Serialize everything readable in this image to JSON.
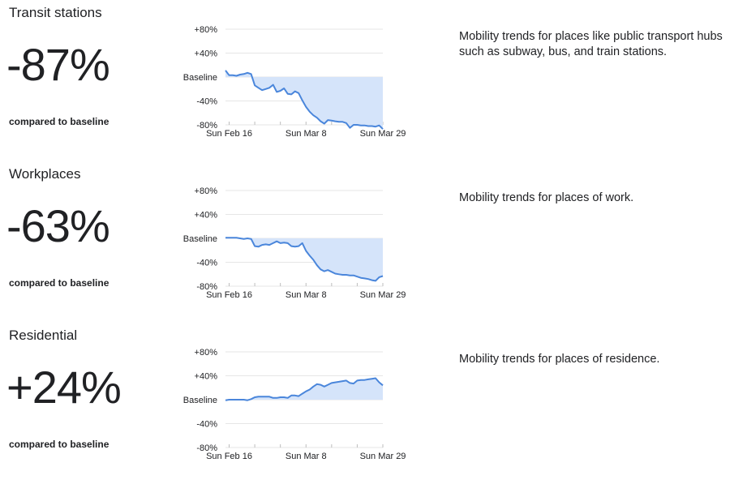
{
  "sections": [
    {
      "title": "Transit stations",
      "value": "-87%",
      "caption": "compared to baseline",
      "description": "Mobility trends for places like public transport hubs such as subway, bus, and train stations."
    },
    {
      "title": "Workplaces",
      "value": "-63%",
      "caption": "compared to baseline",
      "description": "Mobility trends for places of work."
    },
    {
      "title": "Residential",
      "value": "+24%",
      "caption": "compared to baseline",
      "description": "Mobility trends for places of residence."
    }
  ],
  "colors": {
    "line": "#4a86db",
    "fill": "#d5e4fa",
    "grid": "#e6e6e6"
  },
  "chart_data": [
    {
      "type": "area",
      "x_ticks": [
        "Sun Feb 16",
        "Sun Mar 8",
        "Sun Mar 29"
      ],
      "y_ticks": [
        "+80%",
        "+40%",
        "Baseline",
        "-40%",
        "-80%"
      ],
      "ylim": [
        -80,
        80
      ],
      "xlim": [
        "2020-02-15",
        "2020-03-29"
      ],
      "x": [
        "2020-02-15",
        "2020-02-16",
        "2020-02-17",
        "2020-02-18",
        "2020-02-19",
        "2020-02-20",
        "2020-02-21",
        "2020-02-22",
        "2020-02-23",
        "2020-02-24",
        "2020-02-25",
        "2020-02-26",
        "2020-02-27",
        "2020-02-28",
        "2020-02-29",
        "2020-03-01",
        "2020-03-02",
        "2020-03-03",
        "2020-03-04",
        "2020-03-05",
        "2020-03-06",
        "2020-03-07",
        "2020-03-08",
        "2020-03-09",
        "2020-03-10",
        "2020-03-11",
        "2020-03-12",
        "2020-03-13",
        "2020-03-14",
        "2020-03-15",
        "2020-03-16",
        "2020-03-17",
        "2020-03-18",
        "2020-03-19",
        "2020-03-20",
        "2020-03-21",
        "2020-03-22",
        "2020-03-23",
        "2020-03-24",
        "2020-03-25",
        "2020-03-26",
        "2020-03-27",
        "2020-03-28",
        "2020-03-29"
      ],
      "values": [
        11,
        3,
        3,
        2,
        4,
        5,
        7,
        5,
        -14,
        -18,
        -22,
        -20,
        -18,
        -13,
        -25,
        -23,
        -19,
        -28,
        -29,
        -24,
        -27,
        -39,
        -50,
        -58,
        -64,
        -68,
        -74,
        -78,
        -72,
        -73,
        -74,
        -75,
        -75,
        -77,
        -85,
        -80,
        -80,
        -81,
        -81,
        -82,
        -82,
        -83,
        -81,
        -87
      ]
    },
    {
      "type": "area",
      "x_ticks": [
        "Sun Feb 16",
        "Sun Mar 8",
        "Sun Mar 29"
      ],
      "y_ticks": [
        "+80%",
        "+40%",
        "Baseline",
        "-40%",
        "-80%"
      ],
      "ylim": [
        -80,
        80
      ],
      "xlim": [
        "2020-02-15",
        "2020-03-29"
      ],
      "x": [
        "2020-02-15",
        "2020-02-16",
        "2020-02-17",
        "2020-02-18",
        "2020-02-19",
        "2020-02-20",
        "2020-02-21",
        "2020-02-22",
        "2020-02-23",
        "2020-02-24",
        "2020-02-25",
        "2020-02-26",
        "2020-02-27",
        "2020-02-28",
        "2020-02-29",
        "2020-03-01",
        "2020-03-02",
        "2020-03-03",
        "2020-03-04",
        "2020-03-05",
        "2020-03-06",
        "2020-03-07",
        "2020-03-08",
        "2020-03-09",
        "2020-03-10",
        "2020-03-11",
        "2020-03-12",
        "2020-03-13",
        "2020-03-14",
        "2020-03-15",
        "2020-03-16",
        "2020-03-17",
        "2020-03-18",
        "2020-03-19",
        "2020-03-20",
        "2020-03-21",
        "2020-03-22",
        "2020-03-23",
        "2020-03-24",
        "2020-03-25",
        "2020-03-26",
        "2020-03-27",
        "2020-03-28",
        "2020-03-29"
      ],
      "values": [
        1,
        1,
        1,
        1,
        0,
        -1,
        0,
        -1,
        -13,
        -14,
        -11,
        -10,
        -11,
        -8,
        -5,
        -8,
        -7,
        -8,
        -13,
        -14,
        -13,
        -8,
        -21,
        -29,
        -36,
        -45,
        -52,
        -55,
        -53,
        -56,
        -59,
        -60,
        -61,
        -61,
        -62,
        -62,
        -64,
        -66,
        -67,
        -68,
        -70,
        -71,
        -65,
        -63
      ]
    },
    {
      "type": "area",
      "x_ticks": [
        "Sun Feb 16",
        "Sun Mar 8",
        "Sun Mar 29"
      ],
      "y_ticks": [
        "+80%",
        "+40%",
        "Baseline",
        "-40%",
        "-80%"
      ],
      "ylim": [
        -80,
        80
      ],
      "xlim": [
        "2020-02-15",
        "2020-03-29"
      ],
      "x": [
        "2020-02-15",
        "2020-02-16",
        "2020-02-17",
        "2020-02-18",
        "2020-02-19",
        "2020-02-20",
        "2020-02-21",
        "2020-02-22",
        "2020-02-23",
        "2020-02-24",
        "2020-02-25",
        "2020-02-26",
        "2020-02-27",
        "2020-02-28",
        "2020-02-29",
        "2020-03-01",
        "2020-03-02",
        "2020-03-03",
        "2020-03-04",
        "2020-03-05",
        "2020-03-06",
        "2020-03-07",
        "2020-03-08",
        "2020-03-09",
        "2020-03-10",
        "2020-03-11",
        "2020-03-12",
        "2020-03-13",
        "2020-03-14",
        "2020-03-15",
        "2020-03-16",
        "2020-03-17",
        "2020-03-18",
        "2020-03-19",
        "2020-03-20",
        "2020-03-21",
        "2020-03-22",
        "2020-03-23",
        "2020-03-24",
        "2020-03-25",
        "2020-03-26",
        "2020-03-27",
        "2020-03-28",
        "2020-03-29"
      ],
      "values": [
        -1,
        0,
        0,
        0,
        0,
        0,
        -1,
        1,
        4,
        5,
        5,
        5,
        5,
        3,
        3,
        4,
        4,
        3,
        7,
        7,
        6,
        10,
        14,
        17,
        22,
        26,
        25,
        22,
        25,
        28,
        29,
        30,
        31,
        32,
        28,
        27,
        32,
        33,
        33,
        34,
        35,
        36,
        29,
        24
      ]
    }
  ]
}
